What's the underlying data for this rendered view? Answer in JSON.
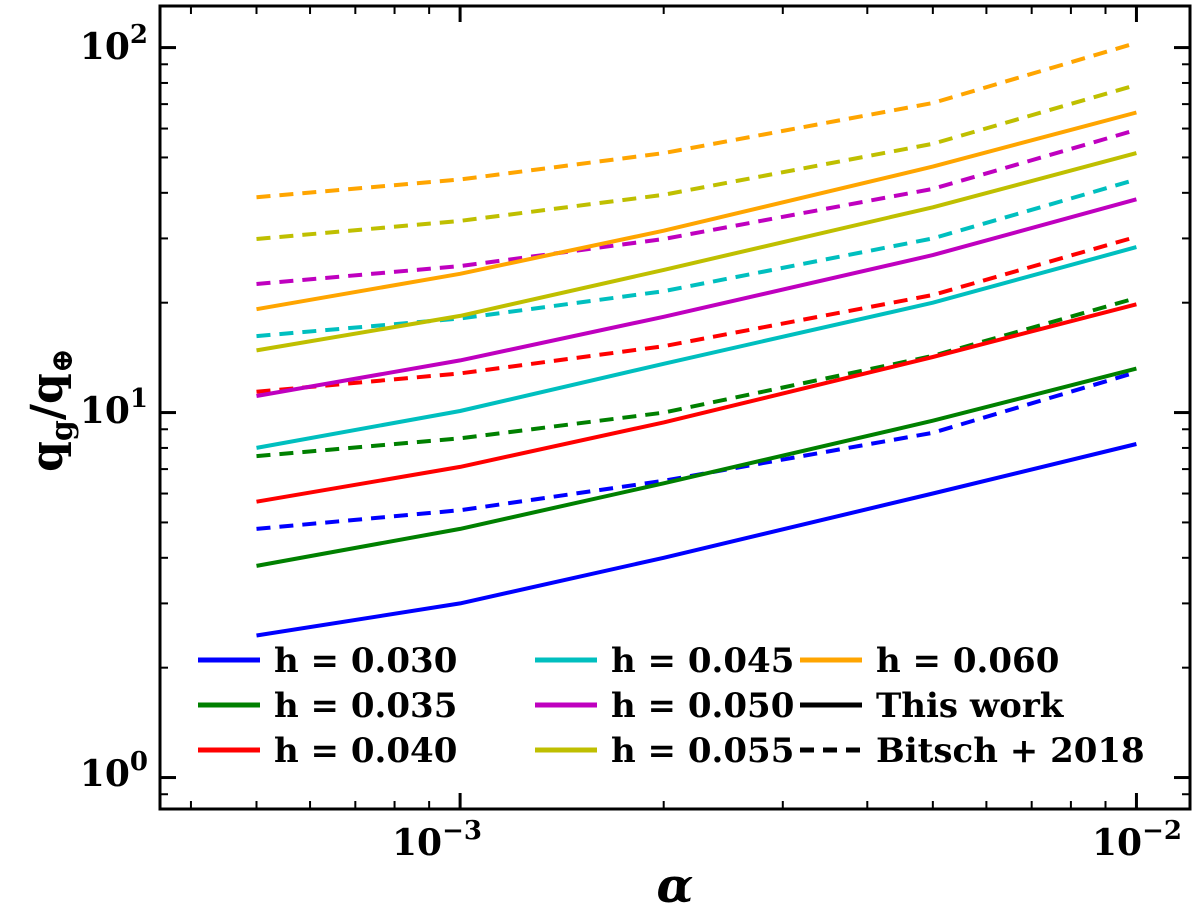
{
  "chart_data": {
    "type": "line",
    "xscale": "log",
    "yscale": "log",
    "xlim": [
      0.00036,
      0.012
    ],
    "ylim": [
      0.82,
      130
    ],
    "xticks": [
      {
        "value": 0.001,
        "base": "10",
        "exp": "−3"
      },
      {
        "value": 0.01,
        "base": "10",
        "exp": "−2"
      }
    ],
    "yticks": [
      {
        "value": 1,
        "base": "10",
        "exp": "0"
      },
      {
        "value": 10,
        "base": "10",
        "exp": "1"
      },
      {
        "value": 100,
        "base": "10",
        "exp": "2"
      }
    ],
    "xlabel": "α",
    "ylabel": {
      "base1": "q",
      "sub1": "g",
      "slash": "/",
      "base2": "q",
      "sub2": "⊕"
    },
    "x": [
      0.0005,
      0.001,
      0.002,
      0.005,
      0.01
    ],
    "series": [
      {
        "name": "h = 0.030",
        "style": "solid",
        "color": "#0000ff",
        "values": [
          2.45,
          3.0,
          4.0,
          6.0,
          8.2
        ]
      },
      {
        "name": "h = 0.030",
        "style": "dashed",
        "color": "#0000ff",
        "values": [
          4.8,
          5.4,
          6.5,
          8.8,
          12.9
        ]
      },
      {
        "name": "h = 0.035",
        "style": "solid",
        "color": "#008000",
        "values": [
          3.8,
          4.8,
          6.4,
          9.5,
          13.2
        ]
      },
      {
        "name": "h = 0.035",
        "style": "dashed",
        "color": "#008000",
        "values": [
          7.6,
          8.5,
          10.0,
          14.3,
          20.6
        ]
      },
      {
        "name": "h = 0.040",
        "style": "solid",
        "color": "#ff0000",
        "values": [
          5.7,
          7.1,
          9.4,
          14.2,
          19.8
        ]
      },
      {
        "name": "h = 0.040",
        "style": "dashed",
        "color": "#ff0000",
        "values": [
          11.4,
          12.8,
          15.2,
          21.0,
          30.3
        ]
      },
      {
        "name": "h = 0.045",
        "style": "solid",
        "color": "#00bfbf",
        "values": [
          8.0,
          10.1,
          13.6,
          20.0,
          28.4
        ]
      },
      {
        "name": "h = 0.045",
        "style": "dashed",
        "color": "#00bfbf",
        "values": [
          16.2,
          18.1,
          21.5,
          30.0,
          43.5
        ]
      },
      {
        "name": "h = 0.050",
        "style": "solid",
        "color": "#bf00bf",
        "values": [
          11.1,
          13.9,
          18.3,
          27.0,
          38.4
        ]
      },
      {
        "name": "h = 0.050",
        "style": "dashed",
        "color": "#bf00bf",
        "values": [
          22.5,
          25.2,
          29.9,
          41.0,
          59.5
        ]
      },
      {
        "name": "h = 0.055",
        "style": "solid",
        "color": "#bfbf00",
        "values": [
          14.8,
          18.4,
          24.6,
          36.5,
          51.4
        ]
      },
      {
        "name": "h = 0.055",
        "style": "dashed",
        "color": "#bfbf00",
        "values": [
          29.9,
          33.5,
          39.5,
          54.5,
          79.0
        ]
      },
      {
        "name": "h = 0.060",
        "style": "solid",
        "color": "#ffa500",
        "values": [
          19.2,
          24.0,
          31.5,
          47.2,
          66.4
        ]
      },
      {
        "name": "h = 0.060",
        "style": "dashed",
        "color": "#ffa500",
        "values": [
          38.9,
          43.5,
          51.4,
          70.5,
          103.0
        ]
      }
    ],
    "legend": {
      "position": "bottom",
      "columns": 3,
      "entries": [
        {
          "label": "h = 0.030",
          "color": "#0000ff",
          "style": "solid"
        },
        {
          "label": "h = 0.035",
          "color": "#008000",
          "style": "solid"
        },
        {
          "label": "h = 0.040",
          "color": "#ff0000",
          "style": "solid"
        },
        {
          "label": "h = 0.045",
          "color": "#00bfbf",
          "style": "solid"
        },
        {
          "label": "h = 0.050",
          "color": "#bf00bf",
          "style": "solid"
        },
        {
          "label": "h = 0.055",
          "color": "#bfbf00",
          "style": "solid"
        },
        {
          "label": "h = 0.060",
          "color": "#ffa500",
          "style": "solid"
        },
        {
          "label": "This work",
          "color": "#000000",
          "style": "solid"
        },
        {
          "label": "Bitsch + 2018",
          "color": "#000000",
          "style": "dashed"
        }
      ]
    }
  }
}
